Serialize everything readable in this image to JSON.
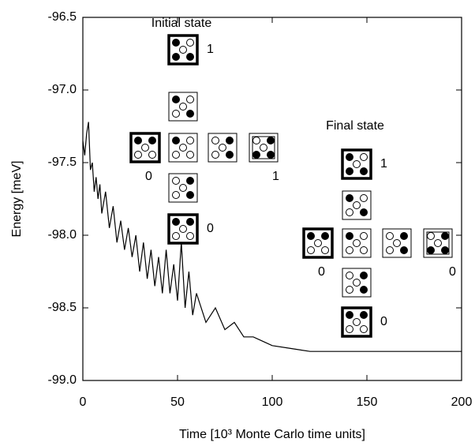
{
  "chart_data": {
    "type": "line",
    "xlabel": "Time [10³ Monte Carlo time units]",
    "ylabel": "Energy [meV]",
    "annotations": [
      "Initial state",
      "Final state",
      "1",
      "0",
      "1",
      "0",
      "1",
      "0",
      "0",
      "0"
    ],
    "x": [
      0,
      1,
      2,
      3,
      4,
      5,
      6,
      7,
      8,
      9,
      10,
      12,
      14,
      16,
      18,
      20,
      22,
      24,
      26,
      28,
      30,
      32,
      34,
      36,
      38,
      40,
      42,
      44,
      46,
      48,
      50,
      52,
      54,
      56,
      58,
      60,
      65,
      70,
      75,
      80,
      85,
      90,
      95,
      100,
      110,
      120,
      140,
      160,
      180,
      200
    ],
    "series": [
      {
        "color": "#000000",
        "values": [
          -97.35,
          -97.45,
          -97.3,
          -97.22,
          -97.55,
          -97.5,
          -97.7,
          -97.6,
          -97.75,
          -97.65,
          -97.85,
          -97.7,
          -97.95,
          -97.8,
          -98.05,
          -97.9,
          -98.1,
          -97.95,
          -98.15,
          -98.0,
          -98.25,
          -98.05,
          -98.3,
          -98.1,
          -98.35,
          -98.15,
          -98.4,
          -98.1,
          -98.4,
          -98.2,
          -98.45,
          -98.05,
          -98.5,
          -98.25,
          -98.55,
          -98.4,
          -98.6,
          -98.5,
          -98.65,
          -98.6,
          -98.7,
          -98.7,
          -98.73,
          -98.76,
          -98.78,
          -98.8,
          -98.8,
          -98.8,
          -98.8,
          -98.8
        ]
      }
    ],
    "xlim": [
      0,
      200
    ],
    "xticks": [
      0,
      50,
      100,
      150,
      200
    ],
    "ylim": [
      -99,
      -96.5
    ],
    "yticks": [
      {
        "value": -99,
        "label": "-99.0"
      },
      -98.5,
      {
        "value": -98,
        "label": "-98.0"
      },
      -97.5,
      {
        "value": -97,
        "label": "-97.0"
      },
      -96.5
    ],
    "grid": false
  }
}
